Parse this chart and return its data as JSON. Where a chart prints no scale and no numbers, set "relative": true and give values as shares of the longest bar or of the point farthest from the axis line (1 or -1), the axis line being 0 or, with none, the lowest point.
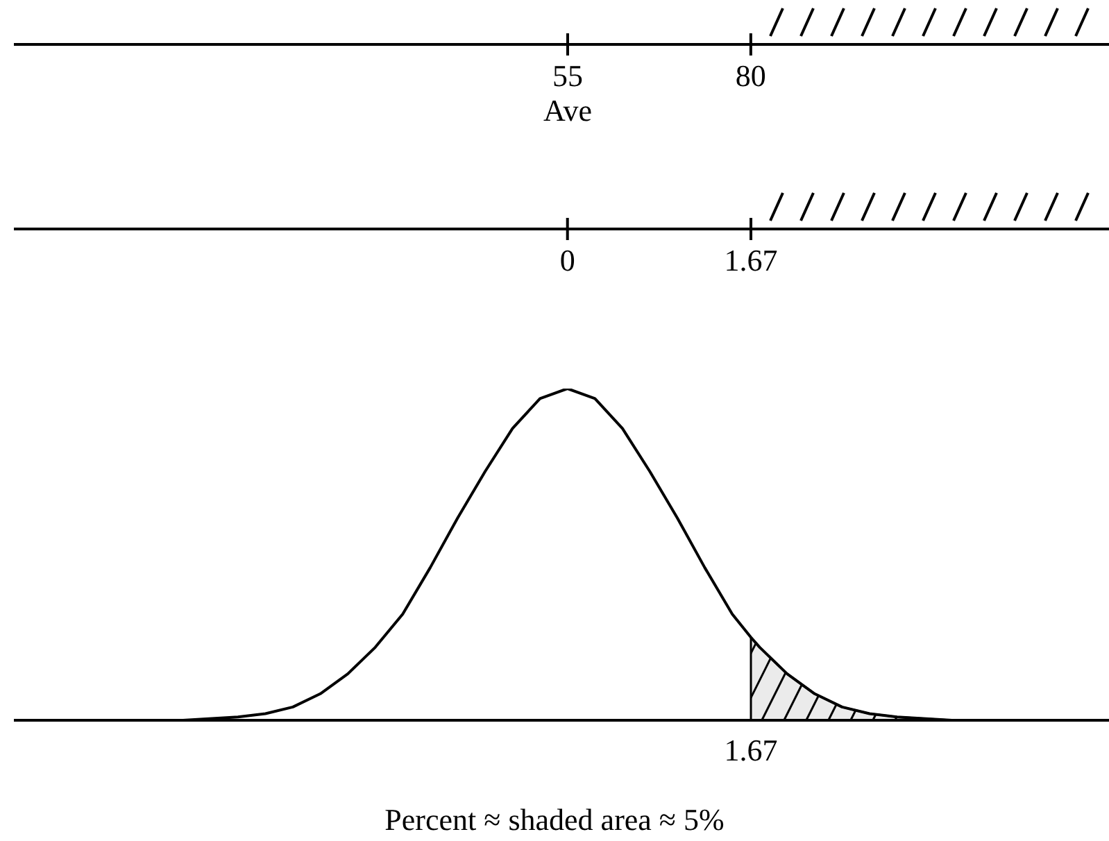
{
  "chart_data": {
    "type": "line",
    "relative": true,
    "xlim": [
      -5.04,
      4.93
    ],
    "xticks": [
      0,
      1.67
    ],
    "x2lim": [
      -20.6,
      128.9
    ],
    "x2ticks": [
      {
        "value": 55,
        "label": "55\nAve"
      },
      80
    ],
    "series": [
      {
        "color": "#000000",
        "x": [
          -5.04,
          -4.5,
          -4,
          -3.5,
          -3,
          -2.75,
          -2.5,
          -2.25,
          -2,
          -1.75,
          -1.5,
          -1.25,
          -1,
          -0.75,
          -0.5,
          -0.25,
          0,
          0.25,
          0.5,
          0.75,
          1,
          1.25,
          1.5,
          1.67,
          1.75,
          2,
          2.25,
          2.5,
          2.75,
          3,
          3.5,
          4,
          4.5,
          4.93
        ],
        "values": [
          0,
          0,
          0,
          0,
          0.01,
          0.02,
          0.04,
          0.08,
          0.14,
          0.22,
          0.32,
          0.46,
          0.61,
          0.75,
          0.88,
          0.97,
          1,
          0.97,
          0.88,
          0.75,
          0.61,
          0.46,
          0.32,
          0.25,
          0.22,
          0.14,
          0.08,
          0.04,
          0.02,
          0.01,
          0,
          0,
          0,
          0
        ]
      },
      {
        "type": "area",
        "color": "#000000",
        "x": [
          1.67,
          1.67,
          1.75,
          2,
          2.25,
          2.5,
          2.75,
          3,
          3.5,
          4,
          4.5,
          4.93
        ],
        "values": [
          0,
          0.25,
          0.22,
          0.14,
          0.08,
          0.04,
          0.02,
          0.01,
          0,
          0,
          0,
          0
        ]
      }
    ],
    "annotations": [
      {
        "text": "1.67",
        "x": 1.67,
        "y": 0
      },
      "Percent  ≈  shaded area  ≈  5%"
    ]
  }
}
